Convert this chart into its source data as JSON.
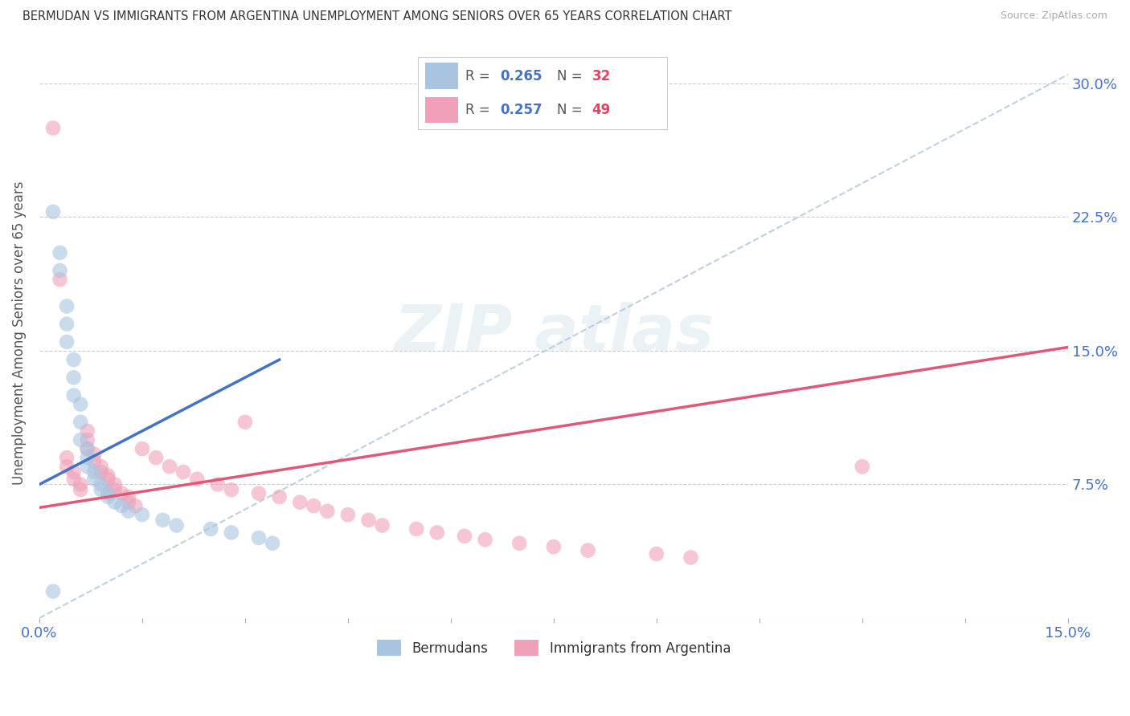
{
  "title": "BERMUDAN VS IMMIGRANTS FROM ARGENTINA UNEMPLOYMENT AMONG SENIORS OVER 65 YEARS CORRELATION CHART",
  "source": "Source: ZipAtlas.com",
  "ylabel": "Unemployment Among Seniors over 65 years",
  "xlim": [
    0.0,
    0.15
  ],
  "ylim": [
    0.0,
    0.32
  ],
  "xticks": [
    0.0,
    0.015,
    0.03,
    0.045,
    0.06,
    0.075,
    0.09,
    0.105,
    0.12,
    0.135,
    0.15
  ],
  "ytick_positions": [
    0.0,
    0.075,
    0.15,
    0.225,
    0.3
  ],
  "ytick_labels": [
    "",
    "7.5%",
    "15.0%",
    "22.5%",
    "30.0%"
  ],
  "bermuda_color": "#a8c4e0",
  "argentina_color": "#f0a0b8",
  "bermuda_line_color": "#4472c4",
  "argentina_line_color": "#e05878",
  "background_color": "#ffffff",
  "bermuda_scatter_x": [
    0.002,
    0.003,
    0.003,
    0.004,
    0.004,
    0.004,
    0.005,
    0.005,
    0.005,
    0.006,
    0.006,
    0.006,
    0.007,
    0.007,
    0.007,
    0.008,
    0.008,
    0.009,
    0.009,
    0.01,
    0.01,
    0.011,
    0.012,
    0.013,
    0.015,
    0.018,
    0.02,
    0.025,
    0.028,
    0.032,
    0.034,
    0.002
  ],
  "bermuda_scatter_y": [
    0.228,
    0.205,
    0.195,
    0.175,
    0.165,
    0.155,
    0.145,
    0.135,
    0.125,
    0.12,
    0.11,
    0.1,
    0.095,
    0.09,
    0.085,
    0.082,
    0.078,
    0.075,
    0.072,
    0.07,
    0.068,
    0.065,
    0.063,
    0.06,
    0.058,
    0.055,
    0.052,
    0.05,
    0.048,
    0.045,
    0.042,
    0.015
  ],
  "argentina_scatter_x": [
    0.002,
    0.003,
    0.004,
    0.004,
    0.005,
    0.005,
    0.006,
    0.006,
    0.007,
    0.007,
    0.007,
    0.008,
    0.008,
    0.009,
    0.009,
    0.01,
    0.01,
    0.011,
    0.011,
    0.012,
    0.013,
    0.013,
    0.014,
    0.015,
    0.017,
    0.019,
    0.021,
    0.023,
    0.026,
    0.028,
    0.03,
    0.032,
    0.035,
    0.038,
    0.04,
    0.042,
    0.045,
    0.048,
    0.05,
    0.055,
    0.058,
    0.062,
    0.065,
    0.07,
    0.075,
    0.08,
    0.09,
    0.095,
    0.12
  ],
  "argentina_scatter_y": [
    0.275,
    0.19,
    0.09,
    0.085,
    0.082,
    0.078,
    0.075,
    0.072,
    0.105,
    0.1,
    0.095,
    0.092,
    0.088,
    0.085,
    0.082,
    0.08,
    0.078,
    0.075,
    0.072,
    0.07,
    0.068,
    0.065,
    0.063,
    0.095,
    0.09,
    0.085,
    0.082,
    0.078,
    0.075,
    0.072,
    0.11,
    0.07,
    0.068,
    0.065,
    0.063,
    0.06,
    0.058,
    0.055,
    0.052,
    0.05,
    0.048,
    0.046,
    0.044,
    0.042,
    0.04,
    0.038,
    0.036,
    0.034,
    0.085
  ],
  "blue_line_x": [
    0.0,
    0.035
  ],
  "blue_line_y": [
    0.075,
    0.145
  ],
  "pink_line_x": [
    0.0,
    0.15
  ],
  "pink_line_y": [
    0.062,
    0.152
  ],
  "dash_line_x": [
    0.0,
    0.15
  ],
  "dash_line_y": [
    0.0,
    0.305
  ]
}
